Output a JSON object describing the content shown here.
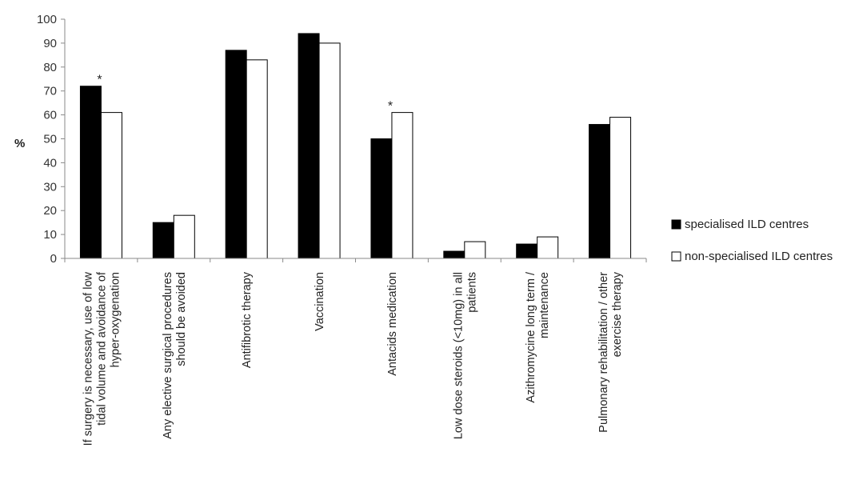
{
  "chart_data": {
    "type": "bar",
    "ylabel": "%",
    "ylim": [
      0,
      100
    ],
    "yticks": [
      0,
      10,
      20,
      30,
      40,
      50,
      60,
      70,
      80,
      90,
      100
    ],
    "grid": false,
    "legend_position": "right",
    "categories": [
      [
        "If surgery is necessary, use of low",
        "tidal volume and avoidance of",
        "hyper-oxygenation"
      ],
      [
        "Any elective surgical procedures",
        "should be avoided"
      ],
      [
        "Antifibrotic therapy"
      ],
      [
        "Vaccination"
      ],
      [
        "Antacids medication"
      ],
      [
        "Low dose steroids (<10mg) in all",
        "patients"
      ],
      [
        "Azithromycine long term /",
        "maintenance"
      ],
      [
        "Pulmonary rehabilitation / other",
        "exercise therapy"
      ]
    ],
    "series": [
      {
        "name": "specialised ILD centres",
        "color": "#000000",
        "values": [
          72,
          15,
          87,
          94,
          50,
          3,
          6,
          56
        ]
      },
      {
        "name": "non-specialised ILD centres",
        "color": "#ffffff",
        "values": [
          61,
          18,
          83,
          90,
          61,
          7,
          9,
          59
        ]
      }
    ],
    "annotations": [
      {
        "category_index": 0,
        "text": "*"
      },
      {
        "category_index": 4,
        "text": "*"
      }
    ]
  }
}
